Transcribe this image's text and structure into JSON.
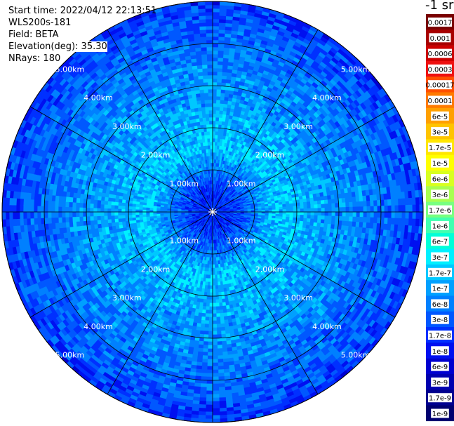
{
  "header": {
    "start_time": "Start time: 2022/04/12 22:13:51",
    "instrument": "WLS200s-181",
    "field": "Field: BETA",
    "elevation": "Elevation(deg): 35.30",
    "nrays": "NRays: 180"
  },
  "colorbar": {
    "unit_label": "-1 sr",
    "labels": [
      "0.0017",
      "0.001",
      "0.0006",
      "0.0003",
      "0.00017",
      "0.0001",
      "6e-5",
      "3e-5",
      "1.7e-5",
      "1e-5",
      "6e-6",
      "3e-6",
      "1.7e-6",
      "1e-6",
      "6e-7",
      "3e-7",
      "1.7e-7",
      "1e-7",
      "6e-8",
      "3e-8",
      "1.7e-8",
      "1e-8",
      "6e-9",
      "3e-9",
      "1.7e-9",
      "1e-9"
    ],
    "colors": [
      "#7a0000",
      "#a80000",
      "#cc0000",
      "#ee1010",
      "#ff5000",
      "#ff7a00",
      "#ffa000",
      "#ffc400",
      "#ffe600",
      "#ffff00",
      "#d8ff20",
      "#a8ff50",
      "#78ff80",
      "#40ffb0",
      "#00ffd8",
      "#00f0ff",
      "#00c8ff",
      "#00a0ff",
      "#0080ff",
      "#0058ff",
      "#0030ff",
      "#0010f0",
      "#0000d0",
      "#0000b0",
      "#000090",
      "#000070"
    ]
  },
  "chart_data": {
    "type": "heatmap",
    "subtype": "polar PPI scan",
    "field": "BETA",
    "elevation_deg": 35.3,
    "nrays": 180,
    "range_rings_km": [
      1,
      2,
      3,
      4,
      5
    ],
    "range_ring_labels": [
      "1.00km",
      "2.00km",
      "3.00km",
      "4.00km",
      "5.00km"
    ],
    "max_range_km": 5.0,
    "spokes_deg": [
      0,
      30,
      60,
      90,
      120,
      150,
      180,
      210,
      240,
      270,
      300,
      330
    ],
    "value_scale": "log",
    "value_range": [
      1e-09,
      0.0017
    ],
    "approx_field_by_range_km": [
      {
        "range_km": 0.5,
        "value": 1.7e-08
      },
      {
        "range_km": 1.5,
        "value": 1.7e-07
      },
      {
        "range_km": 2.5,
        "value": 1e-07
      },
      {
        "range_km": 3.5,
        "value": 6e-08
      },
      {
        "range_km": 4.5,
        "value": 3e-08
      },
      {
        "range_km": 5.0,
        "value": 1.7e-08
      }
    ]
  }
}
